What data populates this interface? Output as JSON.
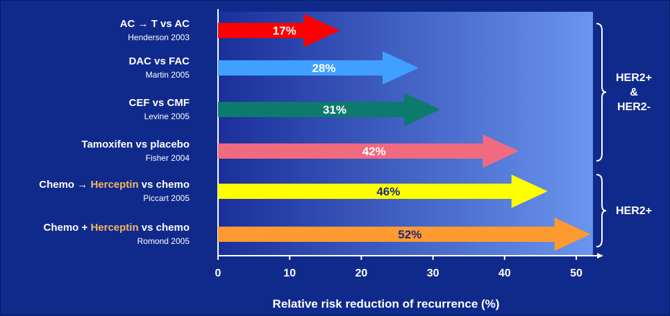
{
  "chart_data": {
    "type": "bar",
    "xlabel": "Relative risk reduction of recurrence (%)",
    "xlim": [
      0,
      52
    ],
    "xticks": [
      "0",
      "10",
      "20",
      "30",
      "40",
      "50"
    ],
    "bars": [
      {
        "label_parts": [
          {
            "text": "AC → T vs AC",
            "highlight": false
          }
        ],
        "sublabel": "Henderson 2003",
        "value": 17,
        "value_label": "17%",
        "color": "#ff0000",
        "text_color": "#ffffff"
      },
      {
        "label_parts": [
          {
            "text": "DAC vs FAC",
            "highlight": false
          }
        ],
        "sublabel": "Martin 2005",
        "value": 28,
        "value_label": "28%",
        "color": "#3fa0ff",
        "text_color": "#ffffff"
      },
      {
        "label_parts": [
          {
            "text": "CEF vs CMF",
            "highlight": false
          }
        ],
        "sublabel": "Levine 2005",
        "value": 31,
        "value_label": "31%",
        "color": "#0d7a6e",
        "text_color": "#ffffff"
      },
      {
        "label_parts": [
          {
            "text": "Tamoxifen vs placebo",
            "highlight": false
          }
        ],
        "sublabel": "Fisher 2004",
        "value": 42,
        "value_label": "42%",
        "color": "#f06a80",
        "text_color": "#ffffff"
      },
      {
        "label_parts": [
          {
            "text": "Chemo → ",
            "highlight": false
          },
          {
            "text": "Herceptin",
            "highlight": true
          },
          {
            "text": " vs chemo",
            "highlight": false
          }
        ],
        "sublabel": "Piccart 2005",
        "value": 46,
        "value_label": "46%",
        "color": "#ffff00",
        "text_color": "#1a2a80"
      },
      {
        "label_parts": [
          {
            "text": "Chemo + ",
            "highlight": false
          },
          {
            "text": "Herceptin",
            "highlight": true
          },
          {
            "text": " vs chemo",
            "highlight": false
          }
        ],
        "sublabel": "Romond 2005",
        "value": 52,
        "value_label": "52%",
        "color": "#ff9a30",
        "text_color": "#1a2a80"
      }
    ],
    "groups": [
      {
        "lines": [
          "HER2+",
          "&",
          "HER2-"
        ],
        "from_bar": 0,
        "to_bar": 3
      },
      {
        "lines": [
          "HER2+"
        ],
        "from_bar": 4,
        "to_bar": 5
      }
    ],
    "colors": {
      "background": "#102a8c",
      "plot_left": "#1a2f9a",
      "plot_right": "#6a95ee",
      "highlight": "#f4b860"
    }
  }
}
